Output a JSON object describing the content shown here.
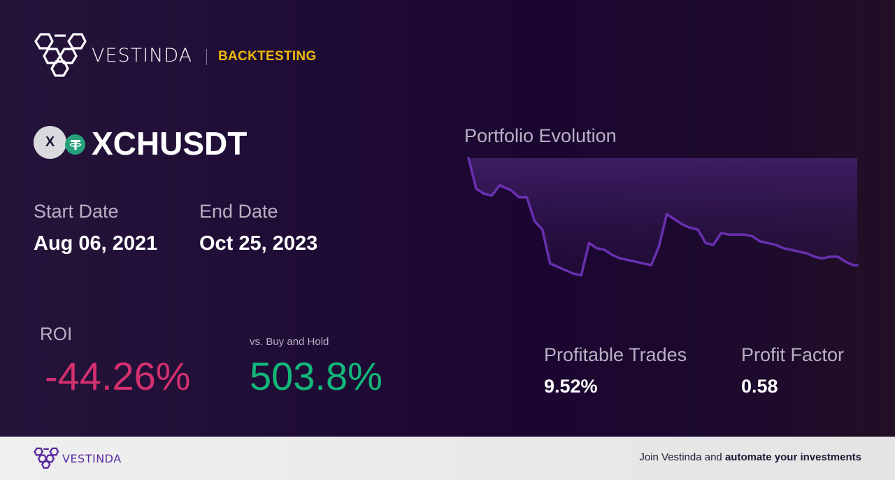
{
  "header": {
    "brand": "VESTINDA",
    "section": "BACKTESTING",
    "section_color": "#f0b90b"
  },
  "asset": {
    "base_icon_letter": "X",
    "quote_icon": "tether-icon",
    "pair": "XCHUSDT"
  },
  "dates": {
    "start_label": "Start Date",
    "start_value": "Aug 06, 2021",
    "end_label": "End Date",
    "end_value": "Oct 25, 2023"
  },
  "metrics": {
    "roi_label": "ROI",
    "roi_value": "-44.26%",
    "roi_color": "#d3306f",
    "bh_label": "vs. Buy and Hold",
    "bh_value": "503.8%",
    "bh_color": "#12b87a",
    "profitable_trades_label": "Profitable Trades",
    "profitable_trades_value": "9.52%",
    "profit_factor_label": "Profit Factor",
    "profit_factor_value": "0.58"
  },
  "chart_data": {
    "type": "area",
    "title": "Portfolio Evolution",
    "xlabel": "",
    "ylabel": "",
    "grid": false,
    "legend": null,
    "line_color": "#6a2fb0",
    "x": [
      0,
      2,
      4,
      6,
      8,
      11,
      13,
      15,
      17,
      19,
      21,
      23,
      25,
      27,
      29,
      31,
      33,
      35,
      37,
      39,
      41,
      43,
      45,
      47,
      49,
      51,
      53,
      55,
      57,
      59,
      61,
      63,
      65,
      67,
      69,
      71,
      73,
      75,
      77,
      79,
      81,
      83,
      85,
      87,
      89,
      91,
      93,
      95,
      97,
      99,
      100
    ],
    "values": [
      100,
      82,
      79,
      78,
      84,
      81,
      77,
      77,
      63,
      58,
      38,
      36,
      34,
      32,
      31,
      50,
      47,
      46,
      43,
      41,
      40,
      39,
      38,
      37,
      48,
      67,
      64,
      61,
      59,
      58,
      50,
      49,
      56,
      55,
      55,
      55,
      54,
      51,
      50,
      49,
      47,
      46,
      45,
      44,
      42,
      41,
      42,
      42,
      39,
      37,
      37
    ]
  },
  "footer": {
    "brand": "VESTINDA",
    "cta_prefix": "Join Vestinda and ",
    "cta_bold": "automate your investments"
  }
}
